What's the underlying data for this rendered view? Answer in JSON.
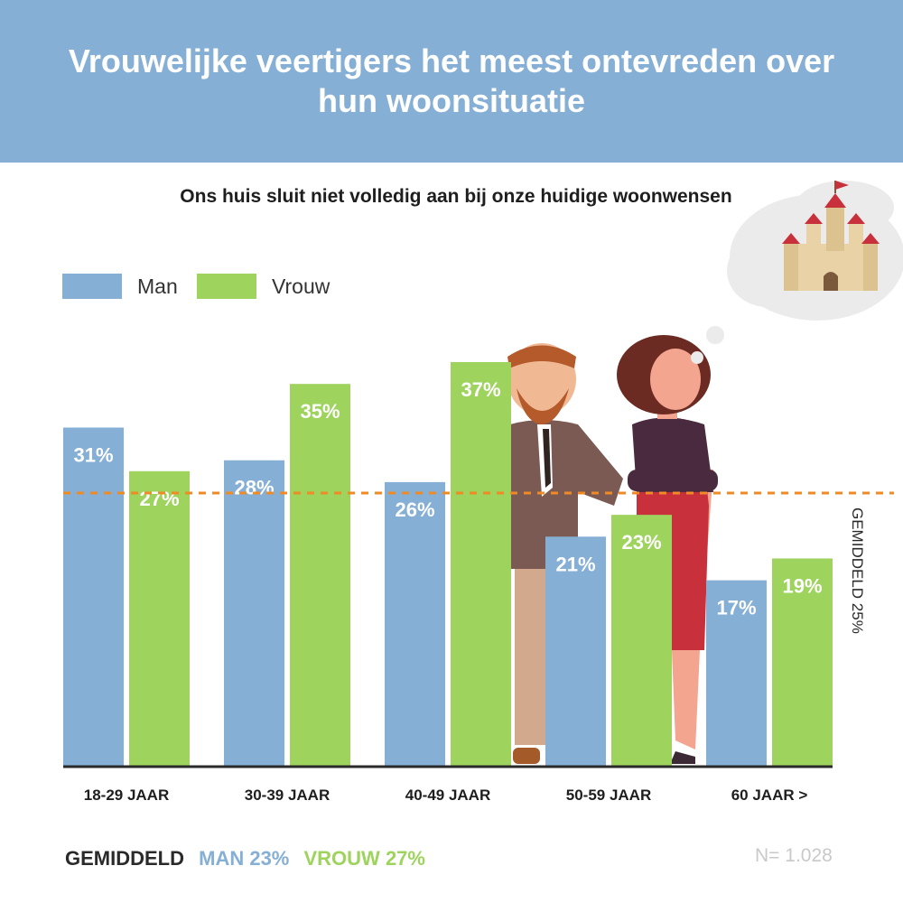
{
  "header": {
    "title": "Vrouwelijke veertigers het meest ontevreden over hun woonsituatie"
  },
  "colors": {
    "header_bg": "#86afd6",
    "man": "#86afd6",
    "vrouw": "#9ed35e",
    "average_line": "#f08a24",
    "axis": "#2a2a2a"
  },
  "chart_data": {
    "type": "bar",
    "title": "Ons huis sluit niet volledig aan bij onze huidige woonwensen",
    "categories": [
      "18-29 JAAR",
      "30-39 JAAR",
      "40-49 JAAR",
      "50-59 JAAR",
      "60 JAAR >"
    ],
    "series": [
      {
        "name": "Man",
        "values": [
          31,
          28,
          26,
          21,
          17
        ],
        "labels": [
          "31%",
          "28%",
          "26%",
          "21%",
          "17%"
        ]
      },
      {
        "name": "Vrouw",
        "values": [
          27,
          35,
          37,
          23,
          19
        ],
        "labels": [
          "27%",
          "35%",
          "37%",
          "23%",
          "19%"
        ]
      }
    ],
    "average": {
      "value": 25,
      "label": "GEMIDDELD 25%"
    },
    "ylim": [
      0,
      37
    ],
    "legend_position": "top-left",
    "grid": false
  },
  "footer": {
    "prefix": "GEMIDDELD",
    "man": "MAN 23%",
    "vrouw": "VROUW 27%",
    "n": "N= 1.028"
  },
  "icons": [
    "castle-thought-bubble-icon",
    "man-illustration",
    "woman-illustration"
  ]
}
